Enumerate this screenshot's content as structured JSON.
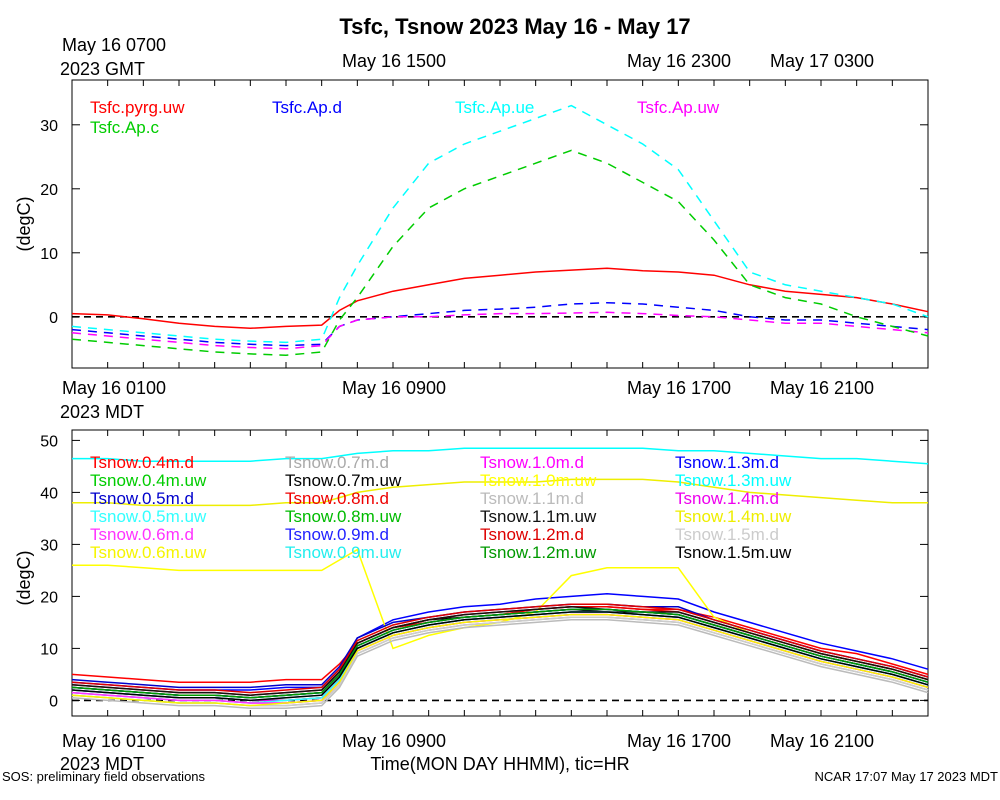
{
  "title": "Tsfc, Tsnow 2023 May 16 - May 17",
  "top_gmt_start_line1": "May 16 0700",
  "top_gmt_start_line2": "2023 GMT",
  "top_gmt_labels": [
    "May 16 1500",
    "May 16 2300",
    "May 17 0300"
  ],
  "mid_mdt_start_line1": "May 16 0100",
  "mid_mdt_start_line2": "2023 MDT",
  "mid_mdt_labels": [
    "May 16 0900",
    "May 16 1700",
    "May 16 2100"
  ],
  "bottom_mdt_start_line1": "May 16 0100",
  "bottom_mdt_start_line2": "2023 MDT",
  "bottom_mdt_labels": [
    "May 16 0900",
    "May 16 1700",
    "May 16 2100"
  ],
  "xlabel": "Time(MON DAY HHMM), tic=HR",
  "footer_left": "SOS: preliminary field observations",
  "footer_right": "NCAR 17:07 May 17 2023 MDT",
  "chart_data": [
    {
      "type": "line",
      "name": "Tsfc",
      "ylabel": "(degC)",
      "x_hours": [
        0,
        1,
        2,
        3,
        4,
        5,
        6,
        7,
        7.5,
        8,
        9,
        10,
        11,
        12,
        13,
        14,
        15,
        16,
        17,
        18,
        19,
        20,
        21,
        22,
        23,
        24
      ],
      "ylim": [
        -8,
        37
      ],
      "yticks": [
        0,
        10,
        20,
        30
      ],
      "zero_line": true,
      "series": [
        {
          "name": "Tsfc.pyrg.uw",
          "color": "#ff0000",
          "values": [
            0.5,
            0.3,
            -0.3,
            -1.0,
            -1.5,
            -1.8,
            -1.5,
            -1.3,
            1,
            2.5,
            4,
            5,
            6,
            6.5,
            7,
            7.3,
            7.6,
            7.2,
            7,
            6.5,
            5,
            4,
            3.5,
            3,
            2,
            0.8
          ]
        },
        {
          "name": "Tsfc.Ap.d",
          "color": "#0000ff",
          "values": [
            -2,
            -2.5,
            -3,
            -3.5,
            -4,
            -4.3,
            -4.5,
            -4.3,
            -1.5,
            -0.5,
            0,
            0.5,
            1,
            1.2,
            1.5,
            2,
            2.2,
            2,
            1.5,
            1,
            0,
            -0.5,
            -0.5,
            -1,
            -1.5,
            -2
          ]
        },
        {
          "name": "Tsfc.Ap.ue",
          "color": "#00ffff",
          "values": [
            -1.5,
            -2,
            -2.5,
            -3,
            -3.5,
            -3.8,
            -4,
            -3.5,
            3,
            8,
            17,
            24,
            27,
            29,
            31,
            33,
            30,
            27,
            23,
            15,
            7,
            5,
            4,
            3,
            2,
            0
          ]
        },
        {
          "name": "Tsfc.Ap.uw",
          "color": "#ff00ff",
          "values": [
            -2.5,
            -3,
            -3.5,
            -4,
            -4.5,
            -4.8,
            -5,
            -4.5,
            -1.5,
            -0.5,
            0,
            0,
            0.3,
            0.5,
            0.5,
            0.6,
            0.7,
            0.5,
            0.2,
            0,
            -0.5,
            -1,
            -1,
            -1.5,
            -2,
            -2.5
          ]
        },
        {
          "name": "Tsfc.Ap.c",
          "color": "#00cc00",
          "values": [
            -3.5,
            -4,
            -4.5,
            -5,
            -5.5,
            -5.8,
            -6,
            -5.5,
            -0.5,
            3,
            11,
            17,
            20,
            22,
            24,
            26,
            24,
            21,
            18,
            12,
            5,
            3,
            2,
            0,
            -1.5,
            -3
          ]
        }
      ]
    },
    {
      "type": "line",
      "name": "Tsnow",
      "ylabel": "(degC)",
      "x_hours": [
        0,
        1,
        2,
        3,
        4,
        5,
        6,
        7,
        7.5,
        8,
        9,
        10,
        11,
        12,
        13,
        14,
        15,
        16,
        17,
        18,
        19,
        20,
        21,
        22,
        23,
        24
      ],
      "ylim": [
        -3,
        52
      ],
      "yticks": [
        0,
        10,
        20,
        30,
        40,
        50
      ],
      "zero_line": true,
      "series": [
        {
          "name": "Tsnow.0.4m.d",
          "color": "#ff0000",
          "values": [
            5,
            4.5,
            4,
            3.5,
            3.5,
            3.5,
            4,
            4,
            7,
            11,
            14,
            15,
            16,
            16.5,
            17.5,
            18,
            18,
            17.5,
            17.5,
            16,
            14,
            12,
            10,
            9,
            7,
            5
          ]
        },
        {
          "name": "Tsnow.0.7m.d",
          "color": "#aaaaaa",
          "values": [
            1,
            0.5,
            0,
            -0.5,
            -0.5,
            -1,
            -1,
            -0.5,
            3,
            9,
            12,
            13.5,
            14.5,
            15,
            15.5,
            16,
            16,
            15.5,
            15,
            13,
            11,
            9,
            7,
            5.5,
            4,
            2
          ]
        },
        {
          "name": "Tsnow.1.0m.d",
          "color": "#ff00ff",
          "values": [
            1.5,
            1,
            0.5,
            0,
            0,
            -0.5,
            -0.5,
            0,
            3.5,
            9.5,
            12.5,
            14,
            15,
            15.5,
            16,
            16.5,
            16.5,
            16,
            15.5,
            13.5,
            11.5,
            9.5,
            7.5,
            6,
            4.5,
            2.5
          ]
        },
        {
          "name": "Tsnow.1.3m.d",
          "color": "#0000ff",
          "values": [
            3.5,
            3,
            2.5,
            2,
            2,
            2,
            2.5,
            2.5,
            6,
            12,
            15.5,
            17,
            18,
            18.5,
            19.5,
            20,
            20.5,
            20,
            19.5,
            17,
            15,
            13,
            11,
            9.5,
            8,
            6
          ]
        },
        {
          "name": "Tsnow.0.4m.uw",
          "color": "#00cc00",
          "values": [
            2,
            1.5,
            1,
            0.5,
            0.5,
            0,
            0,
            0.5,
            4,
            10,
            13,
            14.5,
            15.5,
            16,
            16.5,
            17,
            17,
            16.5,
            16,
            14,
            12,
            10,
            8,
            6.5,
            5,
            3
          ]
        },
        {
          "name": "Tsnow.0.7m.uw",
          "color": "#000000",
          "values": [
            2.5,
            2,
            1.5,
            1,
            1,
            0.5,
            1,
            1.5,
            5,
            11,
            14,
            15.5,
            16,
            16.5,
            17,
            17.5,
            17,
            17,
            16.5,
            14.5,
            12.5,
            10.5,
            8.5,
            7,
            5.5,
            3.5
          ]
        },
        {
          "name": "Tsnow.1.0m.uw",
          "color": "#ffff00",
          "values": [
            26,
            26,
            25.5,
            25,
            25,
            25,
            25,
            25,
            27,
            29,
            10,
            12.5,
            14,
            15,
            17,
            24,
            25.5,
            25.5,
            25.5,
            16,
            13,
            11,
            9,
            7.5,
            6,
            4
          ]
        },
        {
          "name": "Tsnow.1.3m.uw",
          "color": "#00ffff",
          "values": [
            46.5,
            46.5,
            46,
            46,
            46,
            46,
            46.5,
            46.5,
            47,
            47.5,
            48,
            48,
            48.5,
            48.5,
            48.5,
            48.5,
            48.5,
            48.5,
            48,
            48,
            47.5,
            47,
            46.5,
            46.5,
            46,
            45.5
          ]
        },
        {
          "name": "Tsnow.0.5m.d",
          "color": "#0000cc",
          "values": [
            4,
            3.5,
            3,
            2.5,
            2.5,
            2.5,
            3,
            3,
            6.5,
            12,
            15,
            16,
            17,
            17.5,
            18,
            18.5,
            18.5,
            18,
            18,
            15.5,
            13.5,
            11.5,
            9.5,
            8,
            6.5,
            4.5
          ]
        },
        {
          "name": "Tsnow.0.8m.d",
          "color": "#ee0000",
          "values": [
            3,
            2.5,
            2,
            1.5,
            1.5,
            1,
            1.5,
            2,
            5.5,
            11,
            14,
            15.5,
            16.5,
            17,
            17.5,
            18,
            18,
            17.5,
            17,
            15,
            13,
            11,
            9,
            7.5,
            6,
            4
          ]
        },
        {
          "name": "Tsnow.1.1m.d",
          "color": "#bbbbbb",
          "values": [
            0.5,
            0,
            -0.5,
            -1,
            -1,
            -1.5,
            -1.5,
            -1,
            2.5,
            8.5,
            11.5,
            13,
            14,
            14.5,
            15,
            15.5,
            15.5,
            15,
            14.5,
            12.5,
            10.5,
            8.5,
            6.5,
            5,
            3.5,
            1.5
          ]
        },
        {
          "name": "Tsnow.1.4m.d",
          "color": "#ee00ee",
          "values": [
            2,
            1.5,
            1,
            0.5,
            0.5,
            0,
            0,
            0.5,
            4,
            10,
            13,
            14.5,
            15.5,
            16,
            16.5,
            17,
            17,
            16.5,
            16,
            14,
            12,
            10,
            8,
            6.5,
            5,
            3
          ]
        },
        {
          "name": "Tsnow.0.5m.uw",
          "color": "#33ffff",
          "values": [
            1.5,
            1,
            0.5,
            0,
            0,
            -0.5,
            0,
            0.5,
            4,
            10,
            13,
            14.5,
            15.5,
            16,
            16.5,
            17,
            17,
            16.5,
            16,
            14,
            12,
            10,
            8,
            6.5,
            5,
            3
          ]
        },
        {
          "name": "Tsnow.0.8m.uw",
          "color": "#00bb00",
          "values": [
            2.5,
            2,
            1.5,
            1,
            1,
            0.5,
            1,
            1.5,
            5,
            10.5,
            13.5,
            15,
            16,
            16.5,
            17,
            17.5,
            17.5,
            17,
            16.5,
            14.5,
            12.5,
            10.5,
            8.5,
            7,
            5.5,
            3.5
          ]
        },
        {
          "name": "Tsnow.1.1m.uw",
          "color": "#111111",
          "values": [
            3,
            2.5,
            2,
            1.5,
            1.5,
            1,
            1.5,
            2,
            5.5,
            11,
            14,
            15.5,
            16.5,
            17,
            17.5,
            18,
            17.5,
            17,
            17,
            15,
            13,
            11,
            9,
            7.5,
            6,
            4
          ]
        },
        {
          "name": "Tsnow.1.4m.uw",
          "color": "#eeee00",
          "values": [
            38,
            38,
            37.5,
            37.5,
            37.5,
            37.5,
            38,
            38,
            39,
            40,
            41,
            41.5,
            42,
            42,
            42,
            42.5,
            42.5,
            42.5,
            42,
            41,
            40,
            39.5,
            39,
            38.5,
            38,
            38
          ]
        },
        {
          "name": "Tsnow.0.6m.d",
          "color": "#ff33ff",
          "values": [
            1.5,
            1,
            0.5,
            0,
            0,
            -0.5,
            -0.5,
            0,
            3.5,
            9.5,
            12.5,
            14,
            15,
            15.5,
            16,
            16.5,
            16.5,
            16,
            15.5,
            13.5,
            11.5,
            9.5,
            7.5,
            6,
            4.5,
            2.5
          ]
        },
        {
          "name": "Tsnow.0.9m.d",
          "color": "#2222ff",
          "values": [
            2.5,
            2,
            1.5,
            1,
            1,
            0.5,
            1,
            1.5,
            5,
            10.5,
            13.5,
            15,
            16,
            16.5,
            17,
            17.5,
            17.5,
            17,
            16.5,
            14.5,
            12.5,
            10.5,
            8.5,
            7,
            5.5,
            3.5
          ]
        },
        {
          "name": "Tsnow.1.2m.d",
          "color": "#dd0000",
          "values": [
            3.5,
            3,
            2.5,
            2,
            2,
            1.5,
            2,
            2.5,
            6,
            11.5,
            14.5,
            16,
            17,
            17.5,
            18,
            18.5,
            18.5,
            18,
            17.5,
            15.5,
            13.5,
            11.5,
            9.5,
            8,
            6.5,
            4.5
          ]
        },
        {
          "name": "Tsnow.1.5m.d",
          "color": "#cccccc",
          "values": [
            1,
            0.5,
            0,
            -0.5,
            -0.5,
            -1,
            -1,
            -0.5,
            3,
            9,
            12,
            13.5,
            14.5,
            15,
            15.5,
            16,
            16,
            15.5,
            15,
            13,
            11,
            9,
            7,
            5.5,
            4,
            2
          ]
        },
        {
          "name": "Tsnow.0.6m.uw",
          "color": "#f5f500",
          "values": [
            1,
            0.5,
            0,
            -0.5,
            -0.5,
            -1,
            -0.5,
            0,
            3.5,
            9.5,
            12.5,
            14,
            15,
            15.5,
            16,
            16.5,
            16.5,
            16,
            15.5,
            13.5,
            11.5,
            9.5,
            7.5,
            6,
            4.5,
            2.5
          ]
        },
        {
          "name": "Tsnow.0.9m.uw",
          "color": "#22eeee",
          "values": [
            2,
            1.5,
            1,
            0.5,
            0.5,
            0,
            0.5,
            1,
            4.5,
            10,
            13,
            14.5,
            15.5,
            16,
            16.5,
            17,
            17,
            16.5,
            16,
            14,
            12,
            10,
            8,
            6.5,
            5,
            3
          ]
        },
        {
          "name": "Tsnow.1.2m.uw",
          "color": "#009900",
          "values": [
            2.5,
            2,
            1.5,
            1,
            1,
            0.5,
            1,
            1.5,
            5,
            10.5,
            13.5,
            15,
            16,
            16.5,
            17,
            17.5,
            17.5,
            17,
            16.5,
            14.5,
            12.5,
            10.5,
            8.5,
            7,
            5.5,
            3.5
          ]
        },
        {
          "name": "Tsnow.1.5m.uw",
          "color": "#000000",
          "values": [
            2,
            1.5,
            1,
            0.5,
            0.5,
            0,
            0.5,
            1,
            4.5,
            10,
            13,
            14.5,
            15.5,
            16,
            16.5,
            17,
            17,
            16.5,
            16,
            14,
            12,
            10,
            8,
            6.5,
            5,
            3
          ]
        }
      ]
    }
  ]
}
